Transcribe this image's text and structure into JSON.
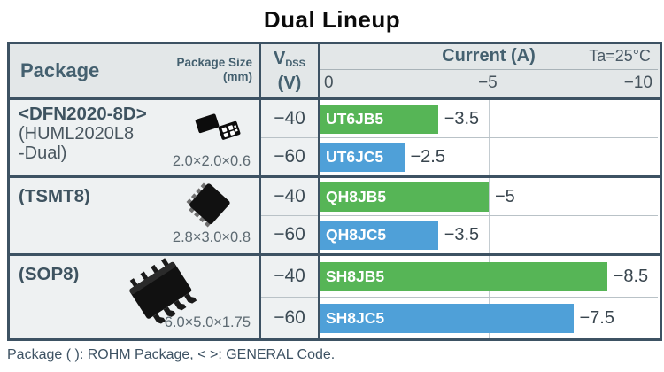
{
  "title": "Dual Lineup",
  "footer": "Package ( ): ROHM Package, < >: GENERAL Code.",
  "colors": {
    "green": "#56b556",
    "blue": "#4fa0d8",
    "border_dark": "#3d5263",
    "header_bg": "#e3e7e8",
    "cell_bg": "#eef1f2",
    "header_text": "#44606f"
  },
  "header": {
    "package_label": "Package",
    "package_size_label": "Package Size\n(mm)",
    "vdss_symbol": "V",
    "vdss_sub": "DSS",
    "vdss_unit": "(V)",
    "current_label": "Current (A)",
    "temp_label": "Ta=25°C",
    "ticks": [
      "0",
      "−5",
      "−10"
    ]
  },
  "rows": [
    {
      "name_lines": [
        "<DFN2020-8D>",
        "(HUML2020L8",
        " -Dual)"
      ],
      "size": "2.0×2.0×0.6",
      "icon": "dfn-chip-icon",
      "entries": [
        {
          "vdss": "−40",
          "part": "UT6JB5",
          "value": 3.5,
          "value_label": "−3.5",
          "color": "green"
        },
        {
          "vdss": "−60",
          "part": "UT6JC5",
          "value": 2.5,
          "value_label": "−2.5",
          "color": "blue"
        }
      ]
    },
    {
      "name_lines": [
        "(TSMT8)"
      ],
      "size": "2.8×3.0×0.8",
      "icon": "tsmt8-chip-icon",
      "entries": [
        {
          "vdss": "−40",
          "part": "QH8JB5",
          "value": 5,
          "value_label": "−5",
          "color": "green"
        },
        {
          "vdss": "−60",
          "part": "QH8JC5",
          "value": 3.5,
          "value_label": "−3.5",
          "color": "blue"
        }
      ]
    },
    {
      "name_lines": [
        "(SOP8)"
      ],
      "size": "6.0×5.0×1.75",
      "icon": "sop8-chip-icon",
      "entries": [
        {
          "vdss": "−40",
          "part": "SH8JB5",
          "value": 8.5,
          "value_label": "−8.5",
          "color": "green"
        },
        {
          "vdss": "−60",
          "part": "SH8JC5",
          "value": 7.5,
          "value_label": "−7.5",
          "color": "blue"
        }
      ]
    }
  ],
  "chart_data": {
    "type": "bar",
    "orientation": "horizontal",
    "title": "Dual Lineup",
    "xlabel": "Current (A)",
    "condition": "Ta=25°C",
    "xlim": [
      0,
      -10
    ],
    "x_ticks": [
      0,
      -5,
      -10
    ],
    "grid": "vertical line at -5",
    "categories": [
      "UT6JB5",
      "UT6JC5",
      "QH8JB5",
      "QH8JC5",
      "SH8JB5",
      "SH8JC5"
    ],
    "values": [
      -3.5,
      -2.5,
      -5,
      -3.5,
      -8.5,
      -7.5
    ],
    "bar_colors": [
      "#56b556",
      "#4fa0d8",
      "#56b556",
      "#4fa0d8",
      "#56b556",
      "#4fa0d8"
    ],
    "groups": [
      {
        "package": "<DFN2020-8D> (HUML2020L8 -Dual)",
        "size_mm": "2.0×2.0×0.6",
        "bars": [
          {
            "part": "UT6JB5",
            "vdss_v": -40,
            "current_a": -3.5
          },
          {
            "part": "UT6JC5",
            "vdss_v": -60,
            "current_a": -2.5
          }
        ]
      },
      {
        "package": "(TSMT8)",
        "size_mm": "2.8×3.0×0.8",
        "bars": [
          {
            "part": "QH8JB5",
            "vdss_v": -40,
            "current_a": -5
          },
          {
            "part": "QH8JC5",
            "vdss_v": -60,
            "current_a": -3.5
          }
        ]
      },
      {
        "package": "(SOP8)",
        "size_mm": "6.0×5.0×1.75",
        "bars": [
          {
            "part": "SH8JB5",
            "vdss_v": -40,
            "current_a": -8.5
          },
          {
            "part": "SH8JC5",
            "vdss_v": -60,
            "current_a": -7.5
          }
        ]
      }
    ]
  }
}
